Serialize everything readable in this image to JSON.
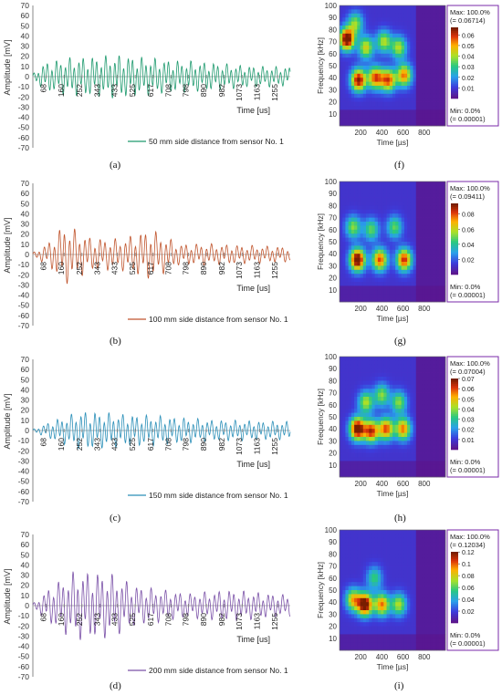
{
  "colors": {
    "legend_background": "#ffffff",
    "colorbar": [
      "#7a1f8c",
      "#4455ee",
      "#22aaee",
      "#33cc55",
      "#ccee22",
      "#ffaa00",
      "#cc2200",
      "#7a2a00"
    ]
  },
  "waveforms": [
    {
      "type": "line",
      "caption": "(a)",
      "legend": "50 mm side distance from sensor No. 1",
      "color": "#1e9a6e",
      "ylabel": "Amplitude [mV]",
      "xlabel": "Time [us]",
      "yticks": [
        "70",
        "60",
        "50",
        "40",
        "30",
        "20",
        "10",
        "0",
        "-10",
        "-20",
        "-30",
        "-40",
        "-50",
        "-60",
        "-70"
      ],
      "xticks": [
        "68",
        "160",
        "252",
        "343",
        "433",
        "525",
        "617",
        "708",
        "798",
        "890",
        "982",
        "1073",
        "1163",
        "1255"
      ],
      "ylim": [
        -70,
        70
      ],
      "xlim": [
        0,
        1320
      ],
      "amplitude_mV": 22,
      "envelope": [
        [
          0,
          0.1
        ],
        [
          60,
          0.6
        ],
        [
          200,
          0.8
        ],
        [
          450,
          0.9
        ],
        [
          700,
          0.7
        ],
        [
          900,
          0.6
        ],
        [
          1100,
          0.45
        ],
        [
          1320,
          0.4
        ]
      ],
      "cycle_us": 23
    },
    {
      "type": "line",
      "caption": "(b)",
      "legend": "100 mm side distance from sensor No. 1",
      "color": "#c0552d",
      "ylabel": "Amplitude [mV]",
      "xlabel": "Time [us]",
      "yticks": [
        "70",
        "60",
        "50",
        "40",
        "30",
        "20",
        "10",
        "0",
        "-10",
        "-20",
        "-30",
        "-40",
        "-50",
        "-60",
        "-70"
      ],
      "xticks": [
        "68",
        "160",
        "252",
        "343",
        "433",
        "525",
        "617",
        "708",
        "798",
        "890",
        "982",
        "1073",
        "1163",
        "1255"
      ],
      "ylim": [
        -70,
        70
      ],
      "xlim": [
        0,
        1320
      ],
      "amplitude_mV": 28,
      "envelope": [
        [
          0,
          0.05
        ],
        [
          80,
          0.4
        ],
        [
          160,
          1.0
        ],
        [
          300,
          0.55
        ],
        [
          450,
          0.5
        ],
        [
          600,
          0.85
        ],
        [
          750,
          0.35
        ],
        [
          900,
          0.35
        ],
        [
          1100,
          0.3
        ],
        [
          1320,
          0.25
        ]
      ],
      "cycle_us": 26
    },
    {
      "type": "line",
      "caption": "(c)",
      "legend": "150 mm side distance from sensor No. 1",
      "color": "#2a8fb8",
      "ylabel": "Amplitude [mV]",
      "xlabel": "Time [us]",
      "yticks": [
        "70",
        "60",
        "50",
        "40",
        "30",
        "20",
        "10",
        "0",
        "-10",
        "-20",
        "-30",
        "-40",
        "-50",
        "-60",
        "-70"
      ],
      "xticks": [
        "68",
        "160",
        "252",
        "343",
        "433",
        "525",
        "617",
        "708",
        "798",
        "890",
        "982",
        "1073",
        "1163",
        "1255"
      ],
      "ylim": [
        -70,
        70
      ],
      "xlim": [
        0,
        1320
      ],
      "amplitude_mV": 18,
      "envelope": [
        [
          0,
          0.05
        ],
        [
          100,
          0.5
        ],
        [
          250,
          1.0
        ],
        [
          450,
          0.85
        ],
        [
          650,
          0.75
        ],
        [
          900,
          0.55
        ],
        [
          1100,
          0.5
        ],
        [
          1320,
          0.45
        ]
      ],
      "cycle_us": 24
    },
    {
      "type": "line",
      "caption": "(d)",
      "legend": "200 mm side distance from sensor No. 1",
      "color": "#7b52a8",
      "ylabel": "Amplitude [mV]",
      "xlabel": "Time [us]",
      "yticks": [
        "70",
        "60",
        "50",
        "40",
        "30",
        "20",
        "10",
        "0",
        "-10",
        "-20",
        "-30",
        "-40",
        "-50",
        "-60",
        "-70"
      ],
      "xticks": [
        "68",
        "160",
        "252",
        "343",
        "433",
        "525",
        "617",
        "708",
        "798",
        "890",
        "982",
        "1073",
        "1163",
        "1255"
      ],
      "ylim": [
        -70,
        70
      ],
      "xlim": [
        0,
        1320
      ],
      "amplitude_mV": 32,
      "envelope": [
        [
          0,
          0.05
        ],
        [
          100,
          0.6
        ],
        [
          220,
          1.0
        ],
        [
          380,
          0.95
        ],
        [
          550,
          0.55
        ],
        [
          800,
          0.35
        ],
        [
          1000,
          0.45
        ],
        [
          1320,
          0.3
        ]
      ],
      "cycle_us": 25
    }
  ],
  "spectrograms": [
    {
      "type": "heatmap",
      "caption": "(f)",
      "ylabel": "Frequency [kHz]",
      "xlabel": "Time [µs]",
      "yticks": [
        "100",
        "90",
        "80",
        "70",
        "60",
        "50",
        "40",
        "30",
        "20",
        "10"
      ],
      "xticks": [
        "200",
        "400",
        "600",
        "800"
      ],
      "xlim": [
        0,
        1000
      ],
      "ylim": [
        0,
        100
      ],
      "max_text": "Max: 100.0%",
      "max_value": "(= 0.06714)",
      "min_text": "Min: 0.0%",
      "min_value": "(= 0.00001)",
      "colorbar_ticks": [
        "0.06",
        "0.05",
        "0.04",
        "0.03",
        "0.02",
        "0.01"
      ],
      "colorbar_max": 0.06714,
      "active_until_us": 720,
      "blobs": [
        [
          70,
          72,
          1.0
        ],
        [
          180,
          38,
          0.9
        ],
        [
          340,
          40,
          0.75
        ],
        [
          460,
          38,
          0.75
        ],
        [
          610,
          42,
          0.7
        ],
        [
          250,
          65,
          0.55
        ],
        [
          420,
          70,
          0.5
        ],
        [
          560,
          65,
          0.5
        ],
        [
          150,
          85,
          0.45
        ]
      ]
    },
    {
      "type": "heatmap",
      "caption": "(g)",
      "ylabel": "Frequency [kHz]",
      "xlabel": "Time [µs]",
      "yticks": [
        "100",
        "90",
        "80",
        "70",
        "60",
        "50",
        "40",
        "30",
        "20",
        "10"
      ],
      "xticks": [
        "200",
        "400",
        "600",
        "800"
      ],
      "xlim": [
        0,
        1000
      ],
      "ylim": [
        0,
        100
      ],
      "max_text": "Max: 100.0%",
      "max_value": "(= 0.09411)",
      "min_text": "Min: 0.0%",
      "min_value": "(= 0.00001)",
      "colorbar_ticks": [
        "0.08",
        "0.06",
        "0.04",
        "0.02"
      ],
      "colorbar_max": 0.09411,
      "active_until_us": 720,
      "blobs": [
        [
          170,
          35,
          1.0
        ],
        [
          380,
          35,
          0.75
        ],
        [
          610,
          35,
          0.8
        ],
        [
          130,
          62,
          0.45
        ],
        [
          300,
          60,
          0.4
        ],
        [
          520,
          62,
          0.4
        ]
      ]
    },
    {
      "type": "heatmap",
      "caption": "(h)",
      "ylabel": "Frequency [kHz]",
      "xlabel": "Time [µs]",
      "yticks": [
        "100",
        "90",
        "80",
        "70",
        "60",
        "50",
        "40",
        "30",
        "20",
        "10"
      ],
      "xticks": [
        "200",
        "400",
        "600",
        "800"
      ],
      "xlim": [
        0,
        1000
      ],
      "ylim": [
        0,
        100
      ],
      "max_text": "Max: 100.0%",
      "max_value": "(= 0.07004)",
      "min_text": "Min: 0.0%",
      "min_value": "(= 0.00001)",
      "colorbar_ticks": [
        "0.07",
        "0.06",
        "0.05",
        "0.04",
        "0.03",
        "0.02",
        "0.01"
      ],
      "colorbar_max": 0.07004,
      "active_until_us": 720,
      "blobs": [
        [
          170,
          40,
          1.0
        ],
        [
          300,
          38,
          0.8
        ],
        [
          440,
          40,
          0.75
        ],
        [
          600,
          40,
          0.7
        ],
        [
          250,
          62,
          0.5
        ],
        [
          400,
          68,
          0.45
        ],
        [
          560,
          62,
          0.45
        ]
      ]
    },
    {
      "type": "heatmap",
      "caption": "(i)",
      "ylabel": "Frequency [kHz]",
      "xlabel": "Time [µs]",
      "yticks": [
        "100",
        "90",
        "80",
        "70",
        "60",
        "50",
        "40",
        "30",
        "20",
        "10"
      ],
      "xticks": [
        "200",
        "400",
        "600",
        "800"
      ],
      "xlim": [
        0,
        1000
      ],
      "ylim": [
        0,
        100
      ],
      "max_text": "Max: 100.0%",
      "max_value": "(= 0.12034)",
      "min_text": "Min: 0.0%",
      "min_value": "(= 0.00001)",
      "colorbar_ticks": [
        "0.12",
        "0.1",
        "0.08",
        "0.06",
        "0.04",
        "0.02"
      ],
      "colorbar_max": 0.12034,
      "active_until_us": 720,
      "blobs": [
        [
          240,
          38,
          1.0
        ],
        [
          130,
          42,
          0.6
        ],
        [
          400,
          38,
          0.7
        ],
        [
          560,
          38,
          0.5
        ],
        [
          330,
          60,
          0.35
        ]
      ]
    }
  ]
}
